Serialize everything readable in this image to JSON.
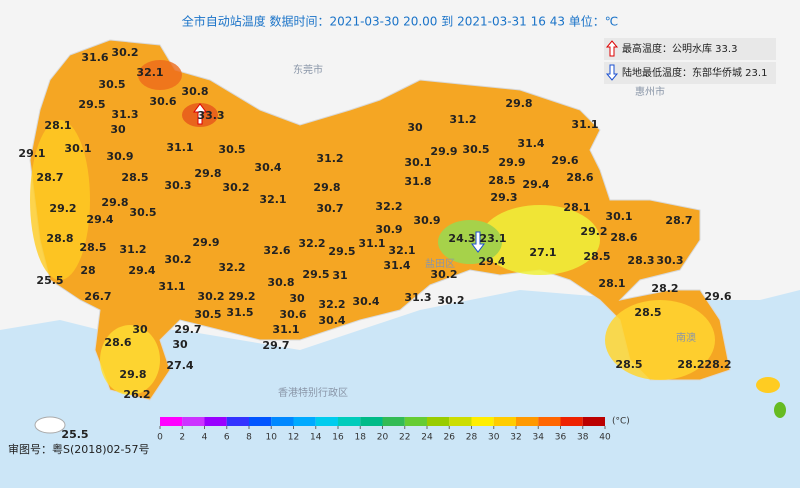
{
  "title": "全市自动站温度  数据时间：2021-03-30 20.00 到 2021-03-31 16 43  单位：℃",
  "extremes": {
    "max": "最高温度：公明水库 33.3",
    "min": "陆地最低温度：东部华侨城 23.1"
  },
  "places": [
    "东莞市",
    "惠州市",
    "香港特别行政区",
    "盐田区",
    "南澳"
  ],
  "stations": [
    31.6,
    30.2,
    32.1,
    30.5,
    30.8,
    30.6,
    33.3,
    29.5,
    31.3,
    28.1,
    30,
    29.1,
    30.1,
    31.1,
    30.5,
    30.9,
    28.7,
    28.5,
    29.8,
    30.4,
    31.2,
    30.3,
    30.2,
    29.8,
    29.2,
    29.8,
    32.1,
    29.4,
    30.5,
    30.7,
    28.8,
    28.5,
    31.2,
    29.9,
    32.6,
    32.2,
    29.5,
    31.1,
    28,
    29.4,
    30.2,
    32.2,
    29.5,
    31,
    25.5,
    26.7,
    31.1,
    30.8,
    30.2,
    29.2,
    30,
    32.2,
    30.4,
    30.5,
    31.5,
    30.6,
    30.4,
    30,
    29.7,
    31.1,
    29.7,
    28.6,
    30,
    27.4,
    29.8,
    26.2,
    25.5,
    29.8,
    31.2,
    31.1,
    30,
    29.9,
    30.5,
    31.4,
    30.1,
    29.9,
    29.6,
    28.5,
    31.8,
    29.4,
    28.6,
    29.3,
    32.2,
    28.1,
    30.1,
    28.7,
    30.9,
    24.3,
    23.1,
    29.2,
    28.6,
    30.9,
    32.1,
    27.1,
    28.5,
    28.3,
    30.3,
    31.4,
    29.4,
    30.2,
    28.1,
    28.2,
    29.6,
    31.3,
    30.2,
    28.5,
    28.5,
    28.2,
    28.2
  ],
  "scale": {
    "unit": "(°C)",
    "ticks": [
      0,
      2,
      4,
      6,
      8,
      10,
      12,
      14,
      16,
      18,
      20,
      22,
      24,
      26,
      28,
      30,
      32,
      34,
      36,
      38,
      40
    ],
    "colors": [
      "#ff00ff",
      "#cc33ff",
      "#9900ff",
      "#3333ff",
      "#0055ff",
      "#0088ff",
      "#00aaff",
      "#00ccee",
      "#00ccbb",
      "#00bb88",
      "#33bb55",
      "#66cc33",
      "#99cc00",
      "#ccdd00",
      "#ffee00",
      "#ffcc00",
      "#ff9900",
      "#ff6600",
      "#ee2200",
      "#bb0000"
    ]
  },
  "footnote": "审图号：粤S(2018)02-57号"
}
